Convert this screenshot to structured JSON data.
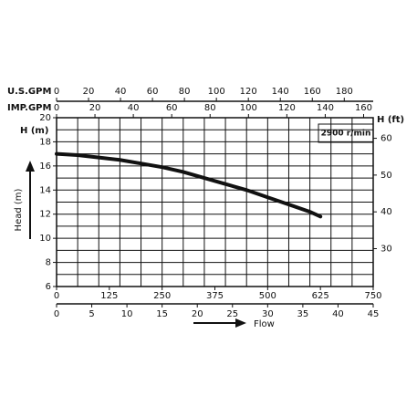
{
  "chart_data": {
    "type": "line",
    "y_label_top": "H (m)",
    "y2_label_top": "H (ft)",
    "y_axis_title": "Head (m)",
    "x_axis_title": "Flow",
    "speed_label": "2900 r/min",
    "usgpm_label": "U.S.GPM",
    "impgpm_label": "IMP.GPM",
    "x": [
      0,
      50,
      100,
      150,
      200,
      250,
      300,
      350,
      400,
      450,
      500,
      550,
      600,
      625
    ],
    "series": [
      {
        "color": "#111111",
        "values": [
          17.0,
          16.9,
          16.7,
          16.5,
          16.2,
          15.9,
          15.5,
          15.0,
          14.5,
          14.0,
          13.4,
          12.8,
          12.2,
          11.8
        ]
      }
    ],
    "xlim": [
      0,
      750
    ],
    "xticks": [
      0,
      125,
      250,
      375,
      500,
      625,
      750
    ],
    "xgrid": [
      0,
      50,
      100,
      150,
      200,
      250,
      300,
      350,
      400,
      450,
      500,
      550,
      600,
      650,
      700,
      750
    ],
    "m3h_lim": [
      0,
      45
    ],
    "m3h_ticks": [
      0,
      5,
      10,
      15,
      20,
      25,
      30,
      35,
      40,
      45
    ],
    "usgpm_lim": [
      0,
      198.1
    ],
    "usgpm_ticks": [
      0,
      20,
      40,
      60,
      80,
      100,
      120,
      140,
      160,
      180
    ],
    "impgpm_lim": [
      0,
      165
    ],
    "impgpm_ticks": [
      0,
      20,
      40,
      60,
      80,
      100,
      120,
      140,
      160
    ],
    "ylim": [
      6,
      20
    ],
    "yticks": [
      6,
      8,
      10,
      12,
      14,
      16,
      18,
      20
    ],
    "ygrid": [
      6,
      7,
      8,
      9,
      10,
      11,
      12,
      13,
      14,
      15,
      16,
      17,
      18,
      19,
      20
    ],
    "y2lim": [
      19.7,
      65.6
    ],
    "y2ticks": [
      30,
      40,
      50,
      60
    ],
    "grid": true
  }
}
